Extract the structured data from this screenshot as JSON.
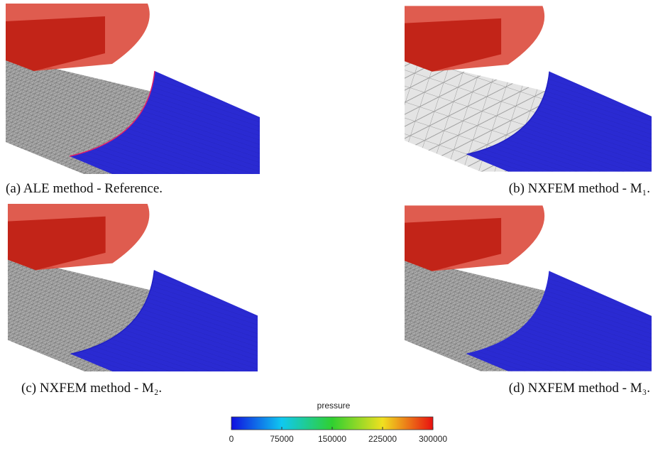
{
  "figure": {
    "panels": [
      {
        "caption": "(a) ALE method - Reference."
      },
      {
        "caption": "(b) NXFEM method - M₁."
      },
      {
        "caption": "(c) NXFEM method - M₂."
      },
      {
        "caption": "(d) NXFEM method - M₃."
      }
    ],
    "colorbar": {
      "label": "pressure",
      "range": [
        0,
        300000
      ],
      "ticks": [
        0,
        75000,
        150000,
        225000,
        300000
      ]
    }
  }
}
